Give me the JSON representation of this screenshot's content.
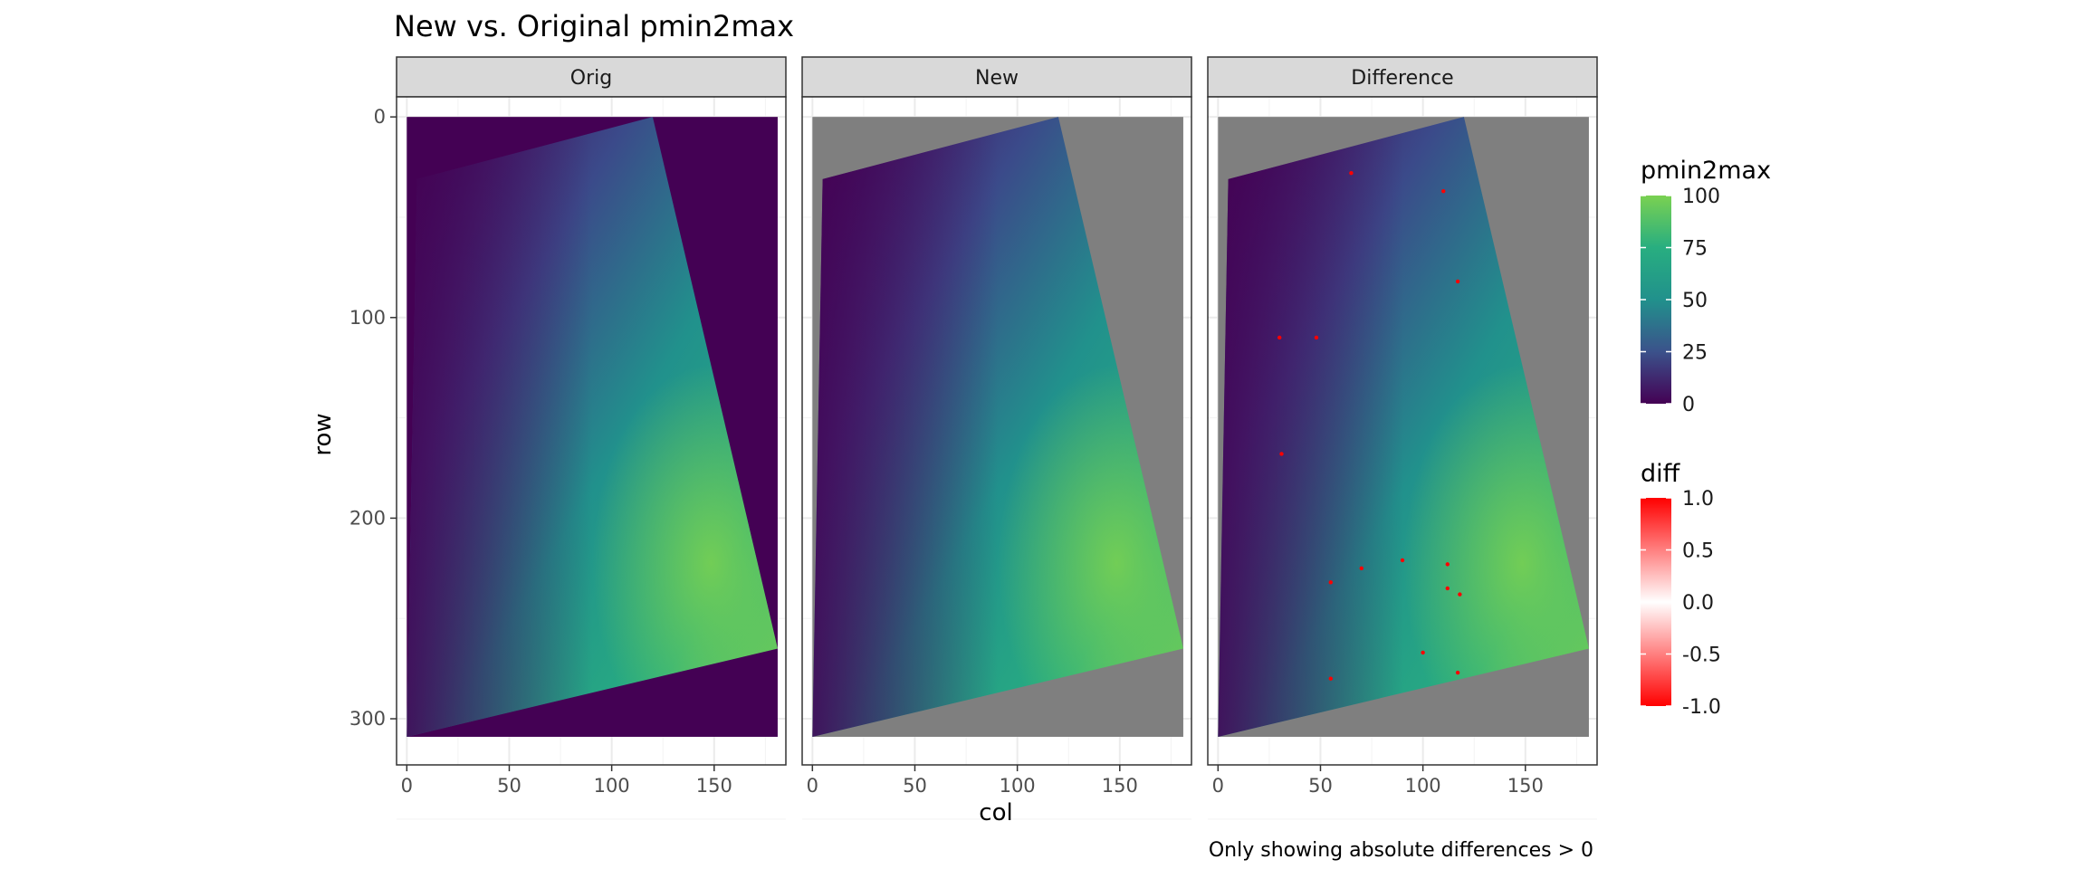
{
  "chart_data": {
    "type": "heatmap",
    "title": "New vs. Original pmin2max",
    "xlabel": "col",
    "ylabel": "row",
    "caption": "Only showing absolute differences > 0",
    "xlim": [
      -5,
      185
    ],
    "ylim": [
      -10,
      323
    ],
    "y_reversed": true,
    "x_ticks": [
      0,
      50,
      100,
      150
    ],
    "y_ticks": [
      0,
      100,
      200,
      300
    ],
    "grid": true,
    "panels": [
      {
        "label": "Orig",
        "background_fill": "#440154"
      },
      {
        "label": "New",
        "background_fill": "#7f7f7f"
      },
      {
        "label": "Difference",
        "background_fill": "#7f7f7f"
      }
    ],
    "data_extent": {
      "x": [
        0,
        181
      ],
      "y": [
        0,
        309
      ]
    },
    "swath_polygon": [
      [
        5,
        31
      ],
      [
        120,
        0
      ],
      [
        181,
        265
      ],
      [
        0,
        309
      ]
    ],
    "value_scale": {
      "name": "pmin2max",
      "breaks": [
        0,
        25,
        50,
        75,
        100
      ],
      "colors": [
        "#440154",
        "#3b528b",
        "#21918c",
        "#5ec962",
        "#7ad151"
      ]
    },
    "diff_scale": {
      "name": "diff",
      "breaks": [
        1.0,
        0.5,
        0.0,
        -0.5,
        -1.0
      ],
      "break_labels": [
        "1.0",
        "0.5",
        "0.0",
        "-0.5",
        "-1.0"
      ],
      "colors": [
        "#ff0000",
        "#ffffff",
        "#ff0000"
      ]
    },
    "difference_points": [
      {
        "x": 65,
        "y": 28
      },
      {
        "x": 110,
        "y": 37
      },
      {
        "x": 117,
        "y": 82
      },
      {
        "x": 30,
        "y": 110
      },
      {
        "x": 48,
        "y": 110
      },
      {
        "x": 31,
        "y": 168
      },
      {
        "x": 55,
        "y": 232
      },
      {
        "x": 70,
        "y": 225
      },
      {
        "x": 90,
        "y": 221
      },
      {
        "x": 112,
        "y": 223
      },
      {
        "x": 112,
        "y": 235
      },
      {
        "x": 118,
        "y": 238
      },
      {
        "x": 100,
        "y": 267
      },
      {
        "x": 117,
        "y": 277
      },
      {
        "x": 55,
        "y": 280
      }
    ],
    "legend_placement": "right"
  }
}
